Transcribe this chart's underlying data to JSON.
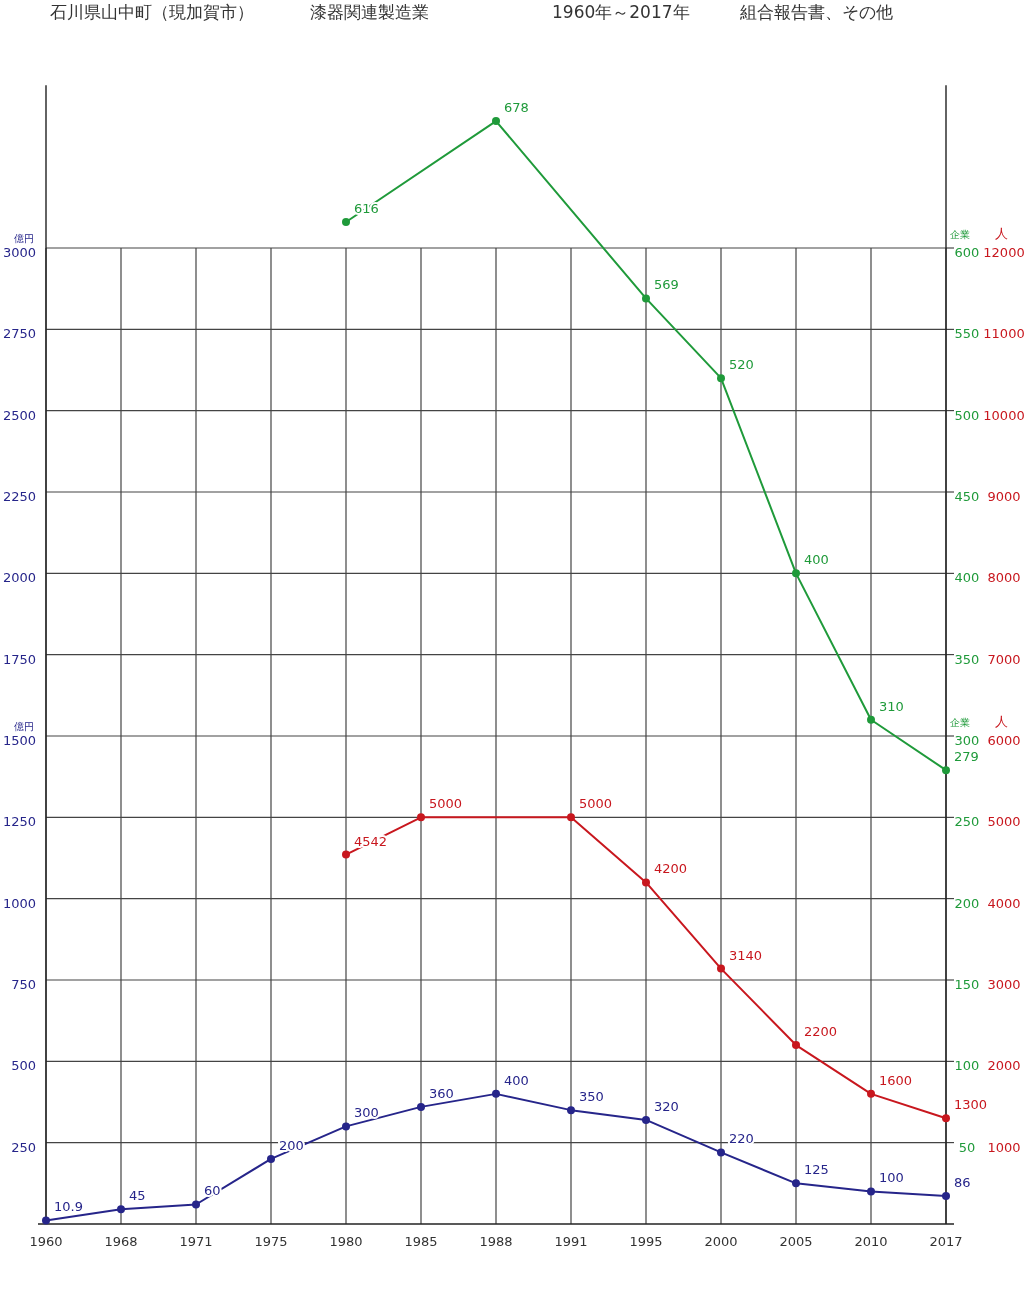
{
  "chart_data": {
    "type": "line",
    "title": "石川県山中町（現加賀市）",
    "subtitle": "漆器関連製造業",
    "annotations": [
      "1960年～2017年",
      "組合報告書、その他"
    ],
    "ylabel": "億円",
    "y2label": "企業",
    "y3label": "人",
    "categories": [
      "1960",
      "1968",
      "1971",
      "1975",
      "1980",
      "1985",
      "1988",
      "1991",
      "1995",
      "2000",
      "2005",
      "2010",
      "2017"
    ],
    "series": [
      {
        "color": "#26258a",
        "values": [
          10.9,
          45,
          60,
          200,
          300,
          360,
          400,
          350,
          320,
          220,
          125,
          100,
          86
        ]
      },
      {
        "color": "#c8171e",
        "axis": "y3",
        "values": [
          null,
          null,
          null,
          null,
          4542,
          5000,
          null,
          5000,
          4200,
          3140,
          2200,
          1600,
          1300
        ]
      },
      {
        "color": "#1f9a3a",
        "axis": "y2",
        "values": [
          null,
          null,
          null,
          null,
          616,
          null,
          678,
          null,
          569,
          520,
          400,
          310,
          279
        ]
      }
    ],
    "ylim": [
      0,
      3500
    ],
    "yticks": [
      250,
      500,
      750,
      1000,
      1250,
      1500,
      1750,
      2000,
      2250,
      2500,
      2750,
      3000
    ],
    "y2lim": [
      0,
      700
    ],
    "y2ticks": [
      50,
      100,
      150,
      200,
      250,
      300,
      350,
      400,
      450,
      500,
      550,
      600
    ],
    "y3lim": [
      0,
      14000
    ],
    "y3ticks": [
      1000,
      2000,
      3000,
      4000,
      5000,
      6000,
      7000,
      8000,
      9000,
      10000,
      11000,
      12000
    ],
    "grid": true,
    "marker": "circle",
    "data_labels": true
  }
}
